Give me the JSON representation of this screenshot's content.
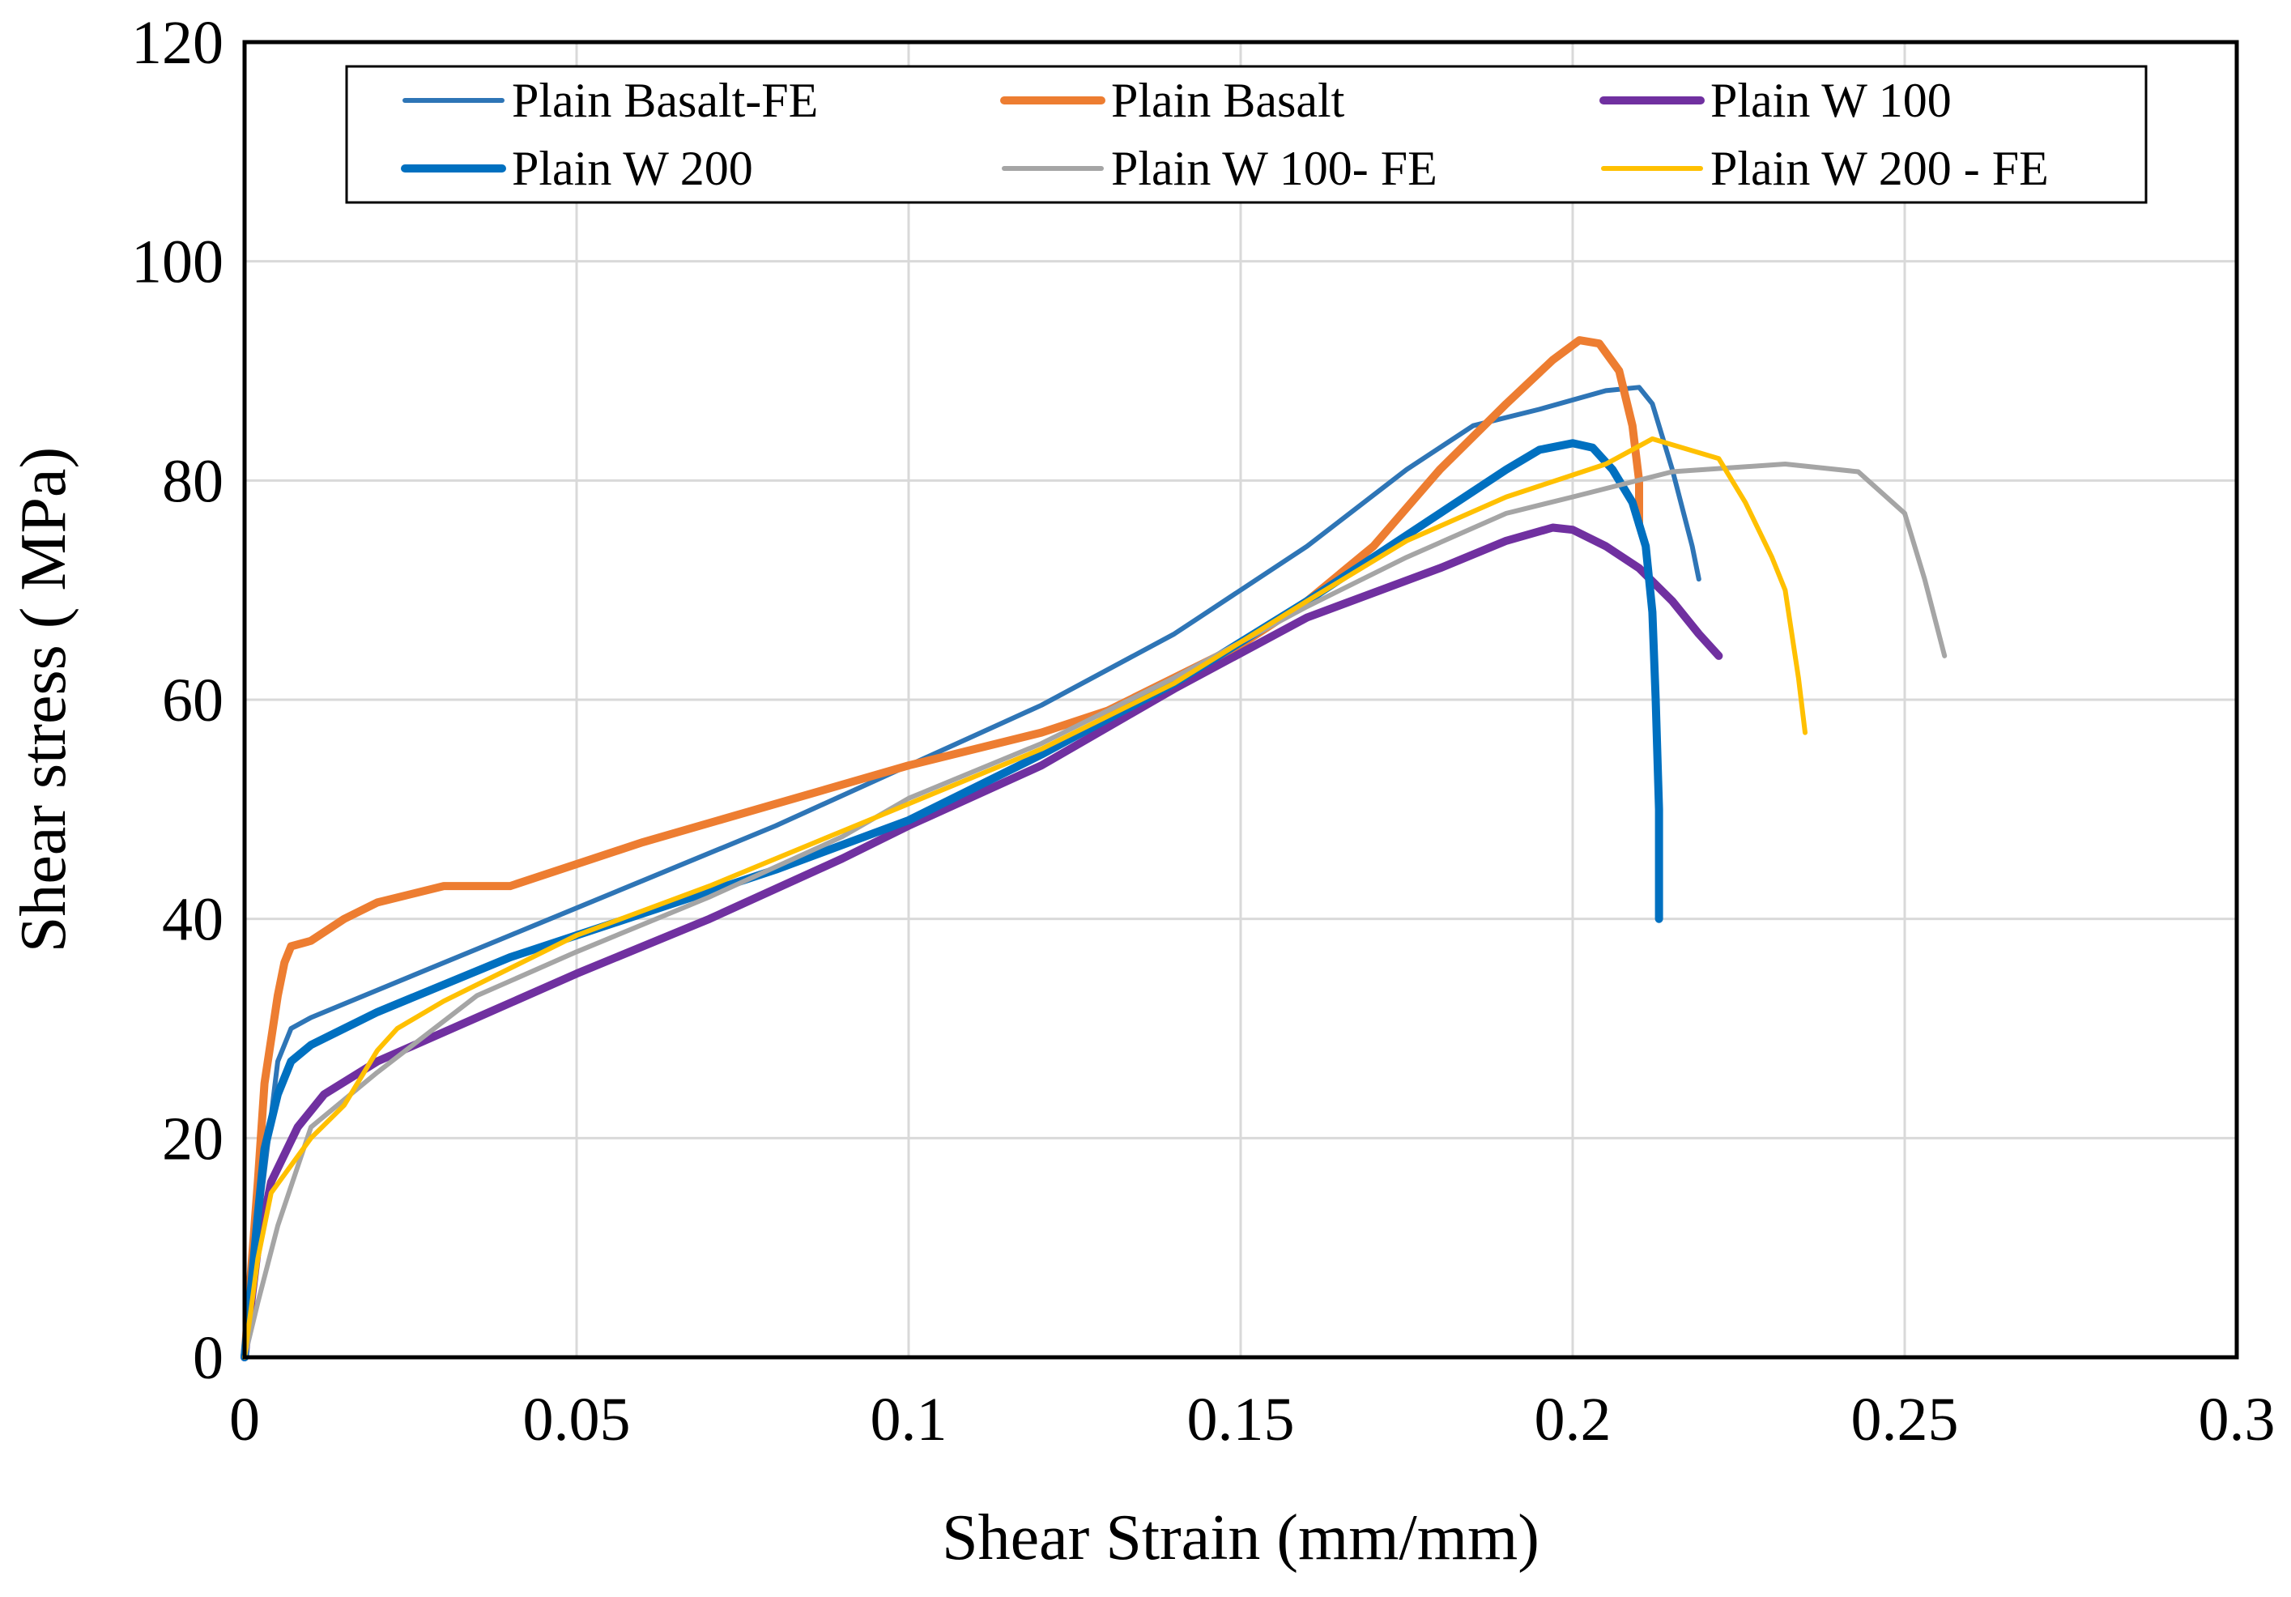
{
  "chart_data": {
    "type": "line",
    "title": "",
    "xlabel": "Shear Strain (mm/mm)",
    "ylabel": "Shear stress ( MPa)",
    "xlim": [
      0,
      0.3
    ],
    "ylim": [
      0,
      120
    ],
    "xticks": [
      0,
      0.05,
      0.1,
      0.15,
      0.2,
      0.25,
      0.3
    ],
    "xtick_labels": [
      "0",
      "0.05",
      "0.1",
      "0.15",
      "0.2",
      "0.25",
      "0.3"
    ],
    "yticks": [
      0,
      20,
      40,
      60,
      80,
      100,
      120
    ],
    "ytick_labels": [
      "0",
      "20",
      "40",
      "60",
      "80",
      "100",
      "120"
    ],
    "grid": true,
    "legend_position": "top",
    "series": [
      {
        "name": "Plain Basalt-FE",
        "color": "#2E75B6",
        "width": "thin",
        "points": [
          [
            0,
            0
          ],
          [
            0.002,
            12
          ],
          [
            0.004,
            22
          ],
          [
            0.005,
            27
          ],
          [
            0.007,
            30
          ],
          [
            0.01,
            31
          ],
          [
            0.02,
            33.5
          ],
          [
            0.04,
            38.5
          ],
          [
            0.06,
            43.5
          ],
          [
            0.08,
            48.5
          ],
          [
            0.1,
            54
          ],
          [
            0.12,
            59.5
          ],
          [
            0.14,
            66
          ],
          [
            0.16,
            74
          ],
          [
            0.175,
            81
          ],
          [
            0.185,
            85
          ],
          [
            0.195,
            86.5
          ],
          [
            0.205,
            88.2
          ],
          [
            0.21,
            88.5
          ],
          [
            0.212,
            87
          ],
          [
            0.215,
            81
          ],
          [
            0.218,
            74
          ],
          [
            0.219,
            71
          ]
        ]
      },
      {
        "name": "Plain Basalt",
        "color": "#ED7D31",
        "width": "thick",
        "points": [
          [
            0,
            0
          ],
          [
            0.002,
            16
          ],
          [
            0.003,
            25
          ],
          [
            0.005,
            33
          ],
          [
            0.006,
            36
          ],
          [
            0.007,
            37.5
          ],
          [
            0.01,
            38
          ],
          [
            0.015,
            40
          ],
          [
            0.02,
            41.5
          ],
          [
            0.03,
            43
          ],
          [
            0.04,
            43
          ],
          [
            0.05,
            45
          ],
          [
            0.06,
            47
          ],
          [
            0.08,
            50.5
          ],
          [
            0.1,
            54
          ],
          [
            0.12,
            57
          ],
          [
            0.13,
            59
          ],
          [
            0.14,
            62
          ],
          [
            0.15,
            65
          ],
          [
            0.16,
            69
          ],
          [
            0.17,
            74
          ],
          [
            0.18,
            81
          ],
          [
            0.19,
            87
          ],
          [
            0.197,
            91
          ],
          [
            0.201,
            92.8
          ],
          [
            0.204,
            92.5
          ],
          [
            0.207,
            90
          ],
          [
            0.209,
            85
          ],
          [
            0.21,
            80
          ],
          [
            0.21,
            76
          ]
        ]
      },
      {
        "name": "Plain W 100",
        "color": "#7030A0",
        "width": "thick",
        "points": [
          [
            0,
            0
          ],
          [
            0.002,
            10
          ],
          [
            0.004,
            16
          ],
          [
            0.008,
            21
          ],
          [
            0.012,
            24
          ],
          [
            0.02,
            27
          ],
          [
            0.035,
            31
          ],
          [
            0.05,
            35
          ],
          [
            0.07,
            40
          ],
          [
            0.09,
            45.5
          ],
          [
            0.1,
            48.5
          ],
          [
            0.12,
            54
          ],
          [
            0.14,
            61
          ],
          [
            0.16,
            67.5
          ],
          [
            0.18,
            72
          ],
          [
            0.19,
            74.5
          ],
          [
            0.197,
            75.7
          ],
          [
            0.2,
            75.5
          ],
          [
            0.205,
            74
          ],
          [
            0.21,
            72
          ],
          [
            0.215,
            69
          ],
          [
            0.219,
            66
          ],
          [
            0.222,
            64
          ]
        ]
      },
      {
        "name": "Plain W 200",
        "color": "#0070C0",
        "width": "thick",
        "points": [
          [
            0,
            0
          ],
          [
            0.002,
            13
          ],
          [
            0.003,
            19
          ],
          [
            0.005,
            24
          ],
          [
            0.007,
            27
          ],
          [
            0.01,
            28.5
          ],
          [
            0.02,
            31.5
          ],
          [
            0.04,
            36.5
          ],
          [
            0.06,
            40.5
          ],
          [
            0.08,
            44.5
          ],
          [
            0.1,
            49
          ],
          [
            0.12,
            55
          ],
          [
            0.14,
            61.5
          ],
          [
            0.16,
            69
          ],
          [
            0.18,
            77
          ],
          [
            0.19,
            81
          ],
          [
            0.195,
            82.8
          ],
          [
            0.2,
            83.4
          ],
          [
            0.203,
            83
          ],
          [
            0.206,
            81
          ],
          [
            0.209,
            78
          ],
          [
            0.211,
            74
          ],
          [
            0.212,
            68
          ],
          [
            0.2125,
            60
          ],
          [
            0.213,
            50
          ],
          [
            0.213,
            40
          ]
        ]
      },
      {
        "name": "Plain W 100- FE",
        "color": "#A5A5A5",
        "width": "thin",
        "points": [
          [
            0,
            0
          ],
          [
            0.002,
            5
          ],
          [
            0.005,
            12
          ],
          [
            0.01,
            21
          ],
          [
            0.02,
            26
          ],
          [
            0.035,
            33
          ],
          [
            0.05,
            37
          ],
          [
            0.07,
            42
          ],
          [
            0.09,
            47.5
          ],
          [
            0.1,
            51
          ],
          [
            0.12,
            56
          ],
          [
            0.14,
            62
          ],
          [
            0.16,
            68.5
          ],
          [
            0.175,
            73
          ],
          [
            0.19,
            77
          ],
          [
            0.2,
            78.5
          ],
          [
            0.215,
            80.8
          ],
          [
            0.232,
            81.5
          ],
          [
            0.243,
            80.8
          ],
          [
            0.25,
            77
          ],
          [
            0.253,
            71
          ],
          [
            0.256,
            64
          ]
        ]
      },
      {
        "name": "Plain W 200 - FE",
        "color": "#FFC000",
        "width": "thin",
        "points": [
          [
            0,
            0
          ],
          [
            0.002,
            9
          ],
          [
            0.004,
            15
          ],
          [
            0.01,
            20
          ],
          [
            0.015,
            23
          ],
          [
            0.02,
            28
          ],
          [
            0.023,
            30
          ],
          [
            0.03,
            32.5
          ],
          [
            0.05,
            38.5
          ],
          [
            0.07,
            43
          ],
          [
            0.09,
            48
          ],
          [
            0.1,
            50.5
          ],
          [
            0.12,
            55.5
          ],
          [
            0.14,
            61.5
          ],
          [
            0.16,
            69
          ],
          [
            0.175,
            74.5
          ],
          [
            0.19,
            78.5
          ],
          [
            0.205,
            81.5
          ],
          [
            0.212,
            83.8
          ],
          [
            0.222,
            82
          ],
          [
            0.226,
            78
          ],
          [
            0.23,
            73
          ],
          [
            0.232,
            70
          ],
          [
            0.233,
            66
          ],
          [
            0.234,
            62
          ],
          [
            0.235,
            57
          ]
        ]
      }
    ]
  }
}
